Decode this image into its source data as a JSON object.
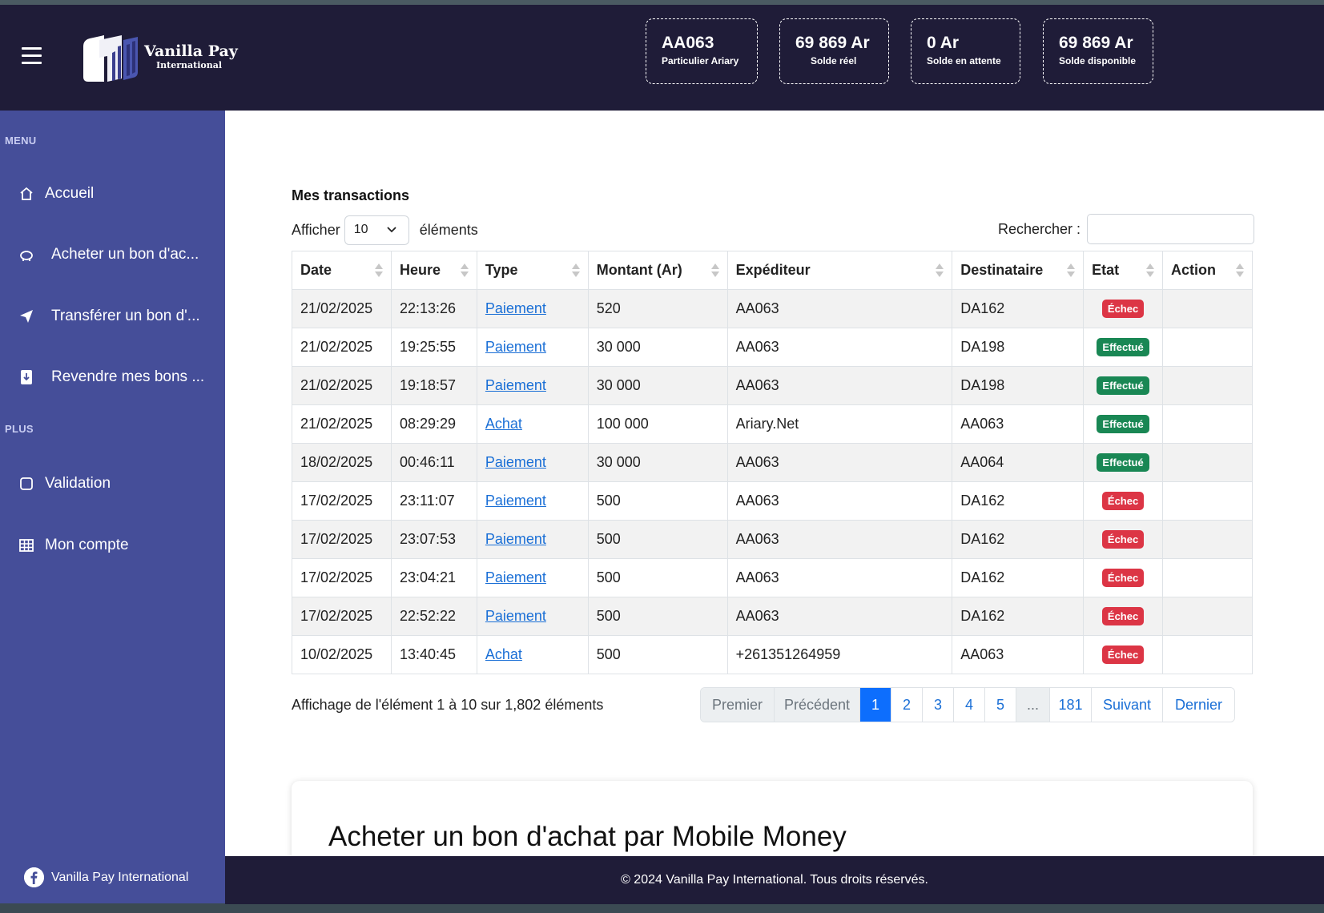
{
  "header": {
    "logo": {
      "line1": "Vanilla Pay",
      "line2": "International"
    },
    "stats": [
      {
        "value": "AA063",
        "label": "Particulier Ariary"
      },
      {
        "value": "69 869 Ar",
        "label": "Solde réel"
      },
      {
        "value": "0 Ar",
        "label": "Solde en attente"
      },
      {
        "value": "69 869 Ar",
        "label": "Solde disponible"
      }
    ]
  },
  "sidebar": {
    "section_menu": "MENU",
    "section_plus": "PLUS",
    "items": [
      {
        "label": "Accueil",
        "icon": "home-icon"
      },
      {
        "label": "Acheter un bon d'ac...",
        "icon": "piggy-bank-icon"
      },
      {
        "label": "Transférer un bon d'...",
        "icon": "send-icon"
      },
      {
        "label": "Revendre mes bons ...",
        "icon": "download-icon"
      },
      {
        "label": "Validation",
        "icon": "square-icon"
      },
      {
        "label": "Mon compte",
        "icon": "table-icon"
      }
    ],
    "footer_label": "Vanilla Pay International"
  },
  "transactions": {
    "title": "Mes transactions",
    "show_prefix": "Afficher",
    "show_value": "10",
    "show_suffix": "éléments",
    "search_label": "Rechercher :",
    "columns": [
      "Date",
      "Heure",
      "Type",
      "Montant (Ar)",
      "Expéditeur",
      "Destinataire",
      "Etat",
      "Action"
    ],
    "rows": [
      {
        "date": "21/02/2025",
        "heure": "22:13:26",
        "type": "Paiement",
        "montant": "520",
        "exp": "AA063",
        "dest": "DA162",
        "etat": "Échec"
      },
      {
        "date": "21/02/2025",
        "heure": "19:25:55",
        "type": "Paiement",
        "montant": "30 000",
        "exp": "AA063",
        "dest": "DA198",
        "etat": "Effectué"
      },
      {
        "date": "21/02/2025",
        "heure": "19:18:57",
        "type": "Paiement",
        "montant": "30 000",
        "exp": "AA063",
        "dest": "DA198",
        "etat": "Effectué"
      },
      {
        "date": "21/02/2025",
        "heure": "08:29:29",
        "type": "Achat",
        "montant": "100 000",
        "exp": "Ariary.Net",
        "dest": "AA063",
        "etat": "Effectué"
      },
      {
        "date": "18/02/2025",
        "heure": "00:46:11",
        "type": "Paiement",
        "montant": "30 000",
        "exp": "AA063",
        "dest": "AA064",
        "etat": "Effectué"
      },
      {
        "date": "17/02/2025",
        "heure": "23:11:07",
        "type": "Paiement",
        "montant": "500",
        "exp": "AA063",
        "dest": "DA162",
        "etat": "Échec"
      },
      {
        "date": "17/02/2025",
        "heure": "23:07:53",
        "type": "Paiement",
        "montant": "500",
        "exp": "AA063",
        "dest": "DA162",
        "etat": "Échec"
      },
      {
        "date": "17/02/2025",
        "heure": "23:04:21",
        "type": "Paiement",
        "montant": "500",
        "exp": "AA063",
        "dest": "DA162",
        "etat": "Échec"
      },
      {
        "date": "17/02/2025",
        "heure": "22:52:22",
        "type": "Paiement",
        "montant": "500",
        "exp": "AA063",
        "dest": "DA162",
        "etat": "Échec"
      },
      {
        "date": "10/02/2025",
        "heure": "13:40:45",
        "type": "Achat",
        "montant": "500",
        "exp": "+261351264959",
        "dest": "AA063",
        "etat": "Échec"
      }
    ],
    "info": "Affichage de l'élément 1 à 10 sur 1,802 éléments",
    "pagination": [
      "Premier",
      "Précédent",
      "1",
      "2",
      "3",
      "4",
      "5",
      "...",
      "181",
      "Suivant",
      "Dernier"
    ]
  },
  "card_title": "Acheter un bon d'achat par Mobile Money",
  "footer_text": "© 2024 Vanilla Pay International. Tous droits réservés.",
  "colors": {
    "header": "#1f1c38",
    "sidebar": "#454e99",
    "echec": "#dc3545",
    "effectue": "#198754",
    "link": "#1a6fd6",
    "active_page": "#0d6efd"
  }
}
